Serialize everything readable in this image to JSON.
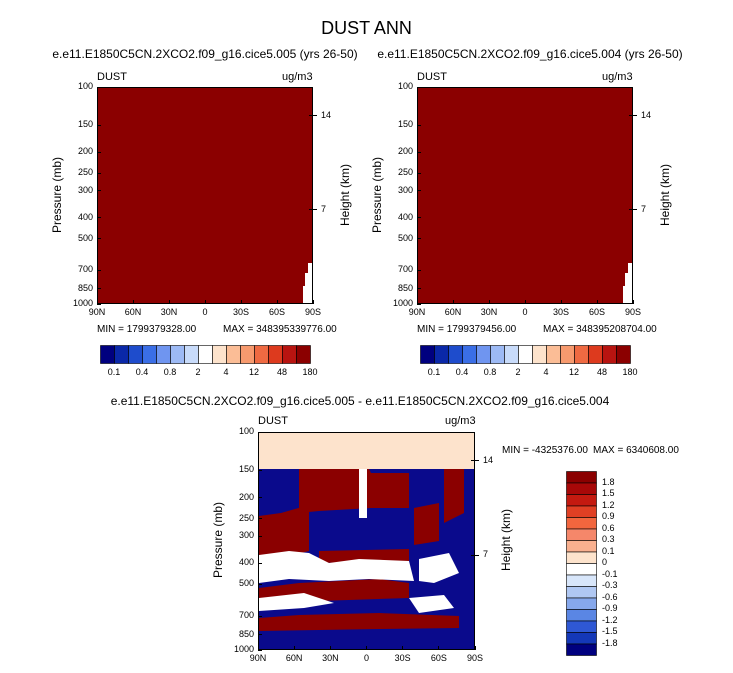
{
  "title": "DUST ANN",
  "colors": {
    "darkred": "#8b0000",
    "navy": "#0a0a8c",
    "cream": "#fde3cc",
    "white": "#ffffff"
  },
  "colorbar_horizontal": {
    "labels": [
      "0.1",
      "0.4",
      "0.8",
      "2",
      "4",
      "12",
      "48",
      "180"
    ],
    "colors": [
      "#00007f",
      "#0a28a8",
      "#1e4ccc",
      "#3a6ee6",
      "#6f95f0",
      "#9dbaf5",
      "#c8dbfa",
      "#ffffff",
      "#fde3cc",
      "#fbbd96",
      "#f79a6e",
      "#ef6a42",
      "#dd3a1e",
      "#b81410",
      "#8b0000"
    ]
  },
  "colorbar_vertical": {
    "labels": [
      "1.8",
      "1.5",
      "1.2",
      "0.9",
      "0.6",
      "0.3",
      "0.1",
      "0",
      "-0.1",
      "-0.3",
      "-0.6",
      "-0.9",
      "-1.2",
      "-1.5",
      "-1.8"
    ],
    "colors": [
      "#8b0000",
      "#a80808",
      "#c41a10",
      "#e04024",
      "#f2663e",
      "#f5876a",
      "#f9b08f",
      "#fde3cc",
      "#ffffff",
      "#d8e6fa",
      "#b0c8f3",
      "#86a8ec",
      "#5a86e4",
      "#2f58d4",
      "#1438b8",
      "#00007f"
    ]
  },
  "panels": [
    {
      "title": "e.e11.E1850C5CN.2XCO2.f09_g16.cice5.005 (yrs 26-50)",
      "left_corner": "DUST",
      "right_corner": "ug/m3",
      "ylabel": "Pressure (mb)",
      "y2label": "Height (km)",
      "min_text": "MIN = 1799379328.00",
      "max_text": "MAX = 348395339776.00"
    },
    {
      "title": "e.e11.E1850C5CN.2XCO2.f09_g16.cice5.004 (yrs 26-50)",
      "left_corner": "DUST",
      "right_corner": "ug/m3",
      "ylabel": "Pressure (mb)",
      "y2label": "Height (km)",
      "min_text": "MIN = 1799379456.00",
      "max_text": "MAX = 348395208704.00"
    },
    {
      "title": "e.e11.E1850C5CN.2XCO2.f09_g16.cice5.005 - e.e11.E1850C5CN.2XCO2.f09_g16.cice5.004",
      "left_corner": "DUST",
      "right_corner": "ug/m3",
      "ylabel": "Pressure (mb)",
      "y2label": "Height (km)",
      "min_text": "MIN = -4325376.00",
      "max_text": "MAX = 6340608.00"
    }
  ],
  "chart_data": [
    {
      "type": "heatmap",
      "title": "e.e11.E1850C5CN.2XCO2.f09_g16.cice5.005 (yrs 26-50)",
      "xlabel": "",
      "ylabel": "Pressure (mb)",
      "y2label": "Height (km)",
      "x_ticks": [
        "90N",
        "60N",
        "30N",
        "0",
        "30S",
        "60S",
        "90S"
      ],
      "x_values": [
        90,
        60,
        30,
        0,
        -30,
        -60,
        -90
      ],
      "y_ticks": [
        "100",
        "150",
        "200",
        "250",
        "300",
        "400",
        "500",
        "700",
        "850",
        "1000"
      ],
      "y_values": [
        100,
        150,
        200,
        250,
        300,
        400,
        500,
        700,
        850,
        1000
      ],
      "y2_ticks": [
        "14",
        "7"
      ],
      "y2_values": [
        14,
        7
      ],
      "ylim": [
        1000,
        100
      ],
      "xlim": [
        90,
        -90
      ],
      "log_pressure": true,
      "min": 1799379328.0,
      "max": 348395339776.0,
      "units": "ug/m3",
      "dominant_level": "180"
    },
    {
      "type": "heatmap",
      "title": "e.e11.E1850C5CN.2XCO2.f09_g16.cice5.004 (yrs 26-50)",
      "xlabel": "",
      "ylabel": "Pressure (mb)",
      "y2label": "Height (km)",
      "x_ticks": [
        "90N",
        "60N",
        "30N",
        "0",
        "30S",
        "60S",
        "90S"
      ],
      "x_values": [
        90,
        60,
        30,
        0,
        -30,
        -60,
        -90
      ],
      "y_ticks": [
        "100",
        "150",
        "200",
        "250",
        "300",
        "400",
        "500",
        "700",
        "850",
        "1000"
      ],
      "y_values": [
        100,
        150,
        200,
        250,
        300,
        400,
        500,
        700,
        850,
        1000
      ],
      "y2_ticks": [
        "14",
        "7"
      ],
      "y2_values": [
        14,
        7
      ],
      "ylim": [
        1000,
        100
      ],
      "xlim": [
        90,
        -90
      ],
      "log_pressure": true,
      "min": 1799379456.0,
      "max": 348395208704.0,
      "units": "ug/m3",
      "dominant_level": "180"
    },
    {
      "type": "heatmap",
      "title": "e.e11.E1850C5CN.2XCO2.f09_g16.cice5.005 - e.e11.E1850C5CN.2XCO2.f09_g16.cice5.004",
      "xlabel": "",
      "ylabel": "Pressure (mb)",
      "y2label": "Height (km)",
      "x_ticks": [
        "90N",
        "60N",
        "30N",
        "0",
        "30S",
        "60S",
        "90S"
      ],
      "x_values": [
        90,
        60,
        30,
        0,
        -30,
        -60,
        -90
      ],
      "y_ticks": [
        "100",
        "150",
        "200",
        "250",
        "300",
        "400",
        "500",
        "700",
        "850",
        "1000"
      ],
      "y_values": [
        100,
        150,
        200,
        250,
        300,
        400,
        500,
        700,
        850,
        1000
      ],
      "y2_ticks": [
        "14",
        "7"
      ],
      "y2_values": [
        14,
        7
      ],
      "ylim": [
        1000,
        100
      ],
      "xlim": [
        90,
        -90
      ],
      "log_pressure": true,
      "min": -4325376.0,
      "max": 6340608.0,
      "units": "ug/m3"
    }
  ]
}
